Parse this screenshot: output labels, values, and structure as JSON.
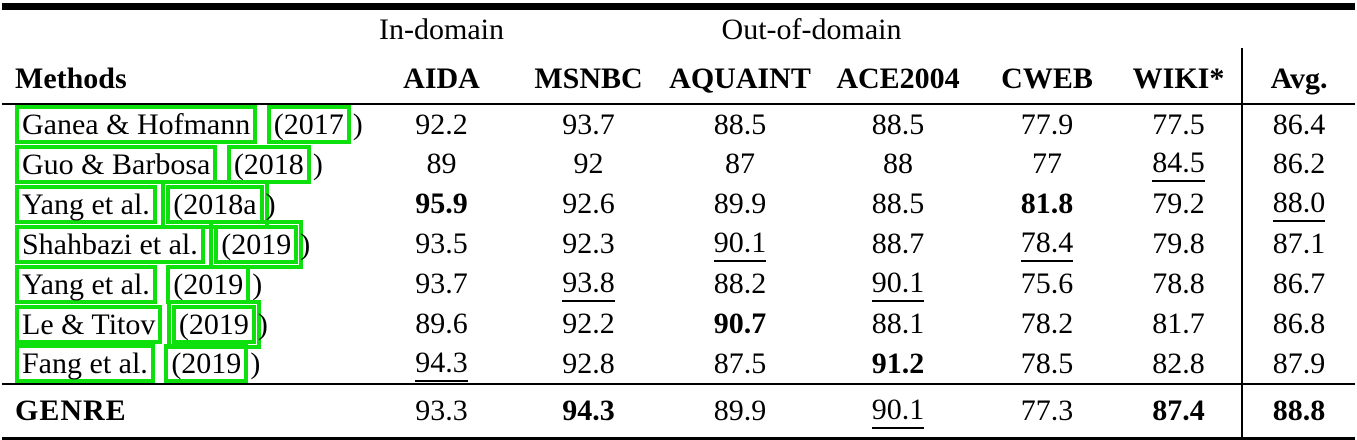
{
  "table": {
    "annotation_color": "#0ee00e",
    "paren_open": "(",
    "paren_close": ")",
    "group_header": {
      "in_domain": "In-domain",
      "out_of_domain": "Out-of-domain"
    },
    "columns": [
      "Methods",
      "AIDA",
      "MSNBC",
      "AQUAINT",
      "ACE2004",
      "CWEB",
      "WIKI*",
      "Avg."
    ],
    "rows": [
      {
        "authors": "Ganea & Hofmann",
        "year": "2017",
        "cells": [
          {
            "t": "92.2"
          },
          {
            "t": "93.7"
          },
          {
            "t": "88.5"
          },
          {
            "t": "88.5"
          },
          {
            "t": "77.9"
          },
          {
            "t": "77.5"
          },
          {
            "t": "86.4"
          }
        ]
      },
      {
        "authors": "Guo & Barbosa",
        "year": "2018",
        "cells": [
          {
            "t": "89"
          },
          {
            "t": "92"
          },
          {
            "t": "87"
          },
          {
            "t": "88"
          },
          {
            "t": "77"
          },
          {
            "t": "84.5",
            "s": "underline"
          },
          {
            "t": "86.2"
          }
        ]
      },
      {
        "authors": "Yang et al.",
        "year": "2018a",
        "year_double": true,
        "cells": [
          {
            "t": "95.9",
            "s": "bold"
          },
          {
            "t": "92.6"
          },
          {
            "t": "89.9"
          },
          {
            "t": "88.5"
          },
          {
            "t": "81.8",
            "s": "bold"
          },
          {
            "t": "79.2"
          },
          {
            "t": "88.0",
            "s": "underline"
          }
        ]
      },
      {
        "authors": "Shahbazi et al.",
        "year": "2019",
        "year_double": true,
        "cells": [
          {
            "t": "93.5"
          },
          {
            "t": "92.3"
          },
          {
            "t": "90.1",
            "s": "underline"
          },
          {
            "t": "88.7"
          },
          {
            "t": "78.4",
            "s": "underline"
          },
          {
            "t": "79.8"
          },
          {
            "t": "87.1"
          }
        ]
      },
      {
        "authors": "Yang et al.",
        "year": "2019",
        "cells": [
          {
            "t": "93.7"
          },
          {
            "t": "93.8",
            "s": "underline"
          },
          {
            "t": "88.2"
          },
          {
            "t": "90.1",
            "s": "underline"
          },
          {
            "t": "75.6"
          },
          {
            "t": "78.8"
          },
          {
            "t": "86.7"
          }
        ]
      },
      {
        "authors": "Le & Titov",
        "year": "2019",
        "year_double": true,
        "cells": [
          {
            "t": "89.6"
          },
          {
            "t": "92.2"
          },
          {
            "t": "90.7",
            "s": "bold"
          },
          {
            "t": "88.1"
          },
          {
            "t": "78.2"
          },
          {
            "t": "81.7"
          },
          {
            "t": "86.8"
          }
        ]
      },
      {
        "authors": "Fang et al.",
        "year": "2019",
        "cells": [
          {
            "t": "94.3",
            "s": "underline"
          },
          {
            "t": "92.8"
          },
          {
            "t": "87.5"
          },
          {
            "t": "91.2",
            "s": "bold"
          },
          {
            "t": "78.5"
          },
          {
            "t": "82.8"
          },
          {
            "t": "87.9"
          }
        ]
      }
    ],
    "summary_row": {
      "label": "GENRE",
      "cells": [
        {
          "t": "93.3"
        },
        {
          "t": "94.3",
          "s": "bold"
        },
        {
          "t": "89.9"
        },
        {
          "t": "90.1",
          "s": "underline"
        },
        {
          "t": "77.3"
        },
        {
          "t": "87.4",
          "s": "bold"
        },
        {
          "t": "88.8",
          "s": "bold"
        }
      ]
    }
  }
}
